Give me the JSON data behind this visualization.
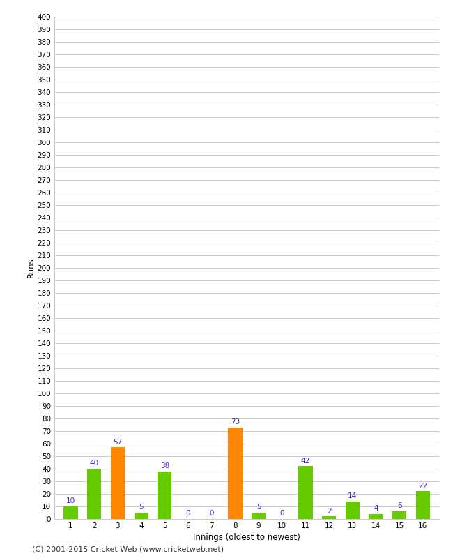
{
  "innings": [
    1,
    2,
    3,
    4,
    5,
    6,
    7,
    8,
    9,
    10,
    11,
    12,
    13,
    14,
    15,
    16
  ],
  "runs": [
    10,
    40,
    57,
    5,
    38,
    0,
    0,
    73,
    5,
    0,
    42,
    2,
    14,
    4,
    6,
    22
  ],
  "colors": [
    "#66cc00",
    "#66cc00",
    "#ff8800",
    "#66cc00",
    "#66cc00",
    "#66cc00",
    "#66cc00",
    "#ff8800",
    "#66cc00",
    "#66cc00",
    "#66cc00",
    "#66cc00",
    "#66cc00",
    "#66cc00",
    "#66cc00",
    "#66cc00"
  ],
  "xlabel": "Innings (oldest to newest)",
  "ylabel": "Runs",
  "ylim": [
    0,
    400
  ],
  "ytick_step": 10,
  "footer": "(C) 2001-2015 Cricket Web (www.cricketweb.net)",
  "label_color": "#3333cc",
  "background_color": "#ffffff",
  "grid_color": "#cccccc"
}
